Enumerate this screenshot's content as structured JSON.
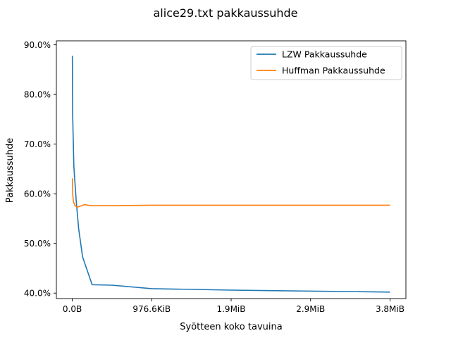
{
  "chart_data": {
    "type": "line",
    "title": "alice29.txt pakkaussuhde",
    "xlabel": "Syötteen koko tavuina",
    "ylabel": "Pakkaussuhde",
    "x_unit": "bytes",
    "xlim": [
      -200000,
      4200000
    ],
    "ylim": [
      0.389,
      0.908
    ],
    "x_ticks": [
      {
        "value": 0,
        "label": "0.0B"
      },
      {
        "value": 1000000,
        "label": "976.6KiB"
      },
      {
        "value": 2000000,
        "label": "1.9MiB"
      },
      {
        "value": 3000000,
        "label": "2.9MiB"
      },
      {
        "value": 4000000,
        "label": "3.8MiB"
      }
    ],
    "y_ticks": [
      {
        "value": 0.4,
        "label": "40.0%"
      },
      {
        "value": 0.5,
        "label": "50.0%"
      },
      {
        "value": 0.6,
        "label": "60.0%"
      },
      {
        "value": 0.7,
        "label": "70.0%"
      },
      {
        "value": 0.8,
        "label": "80.0%"
      },
      {
        "value": 0.9,
        "label": "90.0%"
      }
    ],
    "legend_position": "top-right",
    "grid": false,
    "series": [
      {
        "name": "LZW Pakkaussuhde",
        "color": "#1f77b4",
        "x": [
          1000,
          5000,
          20000,
          50000,
          80000,
          130000,
          250000,
          500000,
          1000000,
          2000000,
          3000000,
          4000000
        ],
        "y": [
          0.878,
          0.76,
          0.655,
          0.585,
          0.53,
          0.473,
          0.417,
          0.416,
          0.409,
          0.406,
          0.404,
          0.402
        ]
      },
      {
        "name": "Huffman Pakkaussuhde",
        "color": "#ff7f0e",
        "x": [
          1000,
          5000,
          15000,
          30000,
          60000,
          100000,
          150000,
          250000,
          500000,
          1000000,
          2000000,
          3000000,
          4000000
        ],
        "y": [
          0.631,
          0.6,
          0.585,
          0.577,
          0.573,
          0.575,
          0.578,
          0.576,
          0.576,
          0.577,
          0.577,
          0.577,
          0.577
        ]
      }
    ]
  }
}
